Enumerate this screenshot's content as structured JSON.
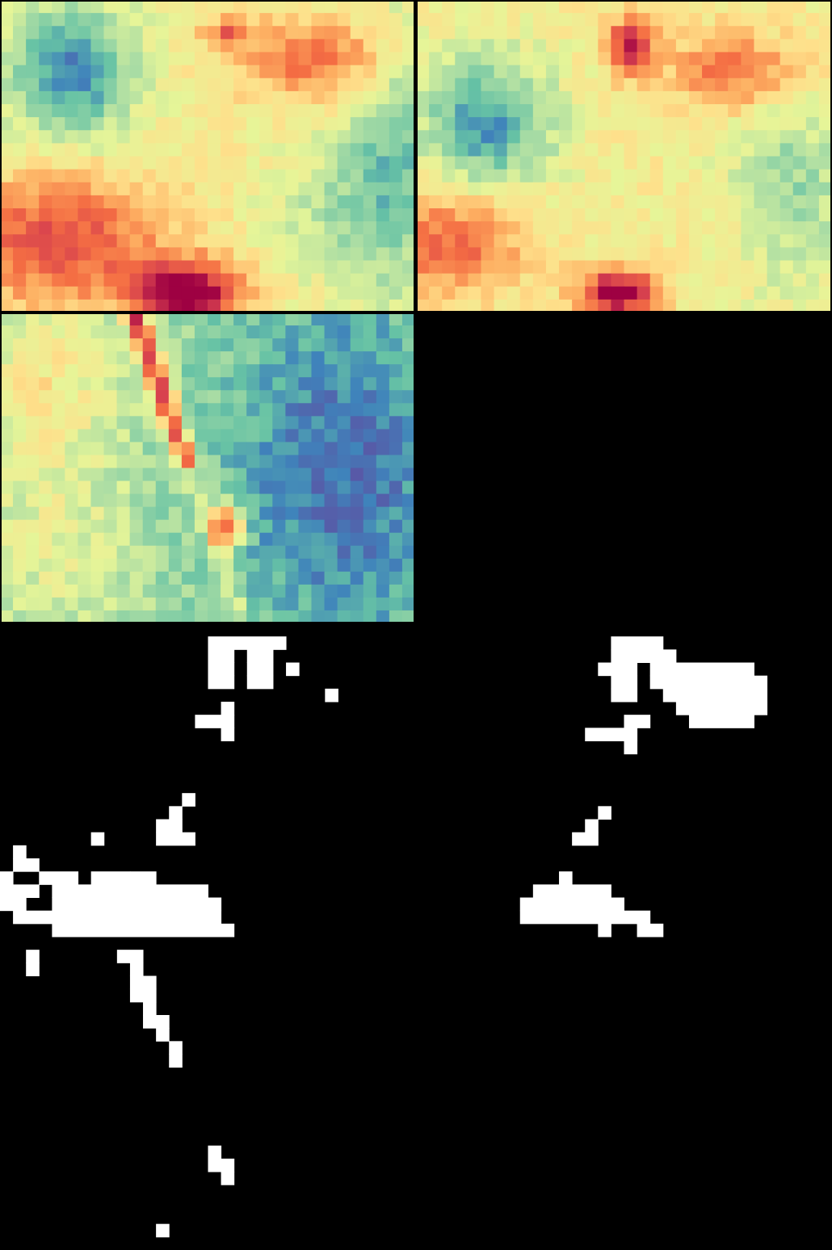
{
  "layout_name": "heatmap-and-mask-grid",
  "colormap": "spectral",
  "palette": [
    "#5e4fa2",
    "#3f83bb",
    "#66c2a5",
    "#abdda4",
    "#e6f598",
    "#fee08b",
    "#fdae61",
    "#f46d43",
    "#d53e4f",
    "#9e0142"
  ],
  "mask_colors": {
    "on": "#ffffff",
    "off": "#000000"
  },
  "panels": [
    {
      "id": "heatmap-a",
      "kind": "heatmap",
      "cols": 32,
      "rows": 24
    },
    {
      "id": "heatmap-b",
      "kind": "heatmap",
      "cols": 32,
      "rows": 24
    },
    {
      "id": "heatmap-c",
      "kind": "heatmap",
      "cols": 32,
      "rows": 24
    },
    {
      "id": "mask-a",
      "kind": "binary-mask",
      "cols": 32,
      "rows": 48
    },
    {
      "id": "mask-b",
      "kind": "binary-mask",
      "cols": 32,
      "rows": 48
    }
  ]
}
